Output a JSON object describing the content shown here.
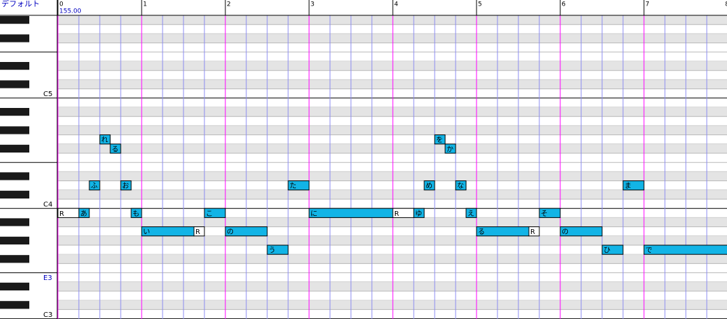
{
  "header": {
    "voice": "デフォルト",
    "tempo": "155.00"
  },
  "measures": [
    0,
    1,
    2,
    3,
    4,
    5,
    6,
    7,
    8
  ],
  "key_labels": [
    {
      "pitch": 72,
      "label": "C5",
      "color": "#000000"
    },
    {
      "pitch": 60,
      "label": "C4",
      "color": "#000000"
    },
    {
      "pitch": 52,
      "label": "E3",
      "color": "#0000c0"
    },
    {
      "pitch": 48,
      "label": "C3",
      "color": "#000000"
    }
  ],
  "notes": [
    {
      "lyric": "R",
      "start": 0,
      "length": 1,
      "pitch": 59,
      "color": "#ffffff"
    },
    {
      "lyric": "あ",
      "start": 1,
      "length": 0.5,
      "pitch": 59,
      "color": "#12b4e6"
    },
    {
      "lyric": "ふ",
      "start": 1.5,
      "length": 0.5,
      "pitch": 62,
      "color": "#12b4e6"
    },
    {
      "lyric": "れ",
      "start": 2,
      "length": 0.5,
      "pitch": 67,
      "color": "#12b4e6"
    },
    {
      "lyric": "る",
      "start": 2.5,
      "length": 0.5,
      "pitch": 66,
      "color": "#12b4e6"
    },
    {
      "lyric": "お",
      "start": 3,
      "length": 0.5,
      "pitch": 62,
      "color": "#12b4e6"
    },
    {
      "lyric": "も",
      "start": 3.5,
      "length": 0.5,
      "pitch": 59,
      "color": "#12b4e6"
    },
    {
      "lyric": "い",
      "start": 4,
      "length": 2.5,
      "pitch": 57,
      "color": "#12b4e6"
    },
    {
      "lyric": "R",
      "start": 6.5,
      "length": 0.5,
      "pitch": 57,
      "color": "#ffffff"
    },
    {
      "lyric": "こ",
      "start": 7,
      "length": 1,
      "pitch": 59,
      "color": "#12b4e6"
    },
    {
      "lyric": "の",
      "start": 8,
      "length": 2,
      "pitch": 57,
      "color": "#12b4e6"
    },
    {
      "lyric": "う",
      "start": 10,
      "length": 1,
      "pitch": 55,
      "color": "#12b4e6"
    },
    {
      "lyric": "た",
      "start": 11,
      "length": 1,
      "pitch": 62,
      "color": "#12b4e6"
    },
    {
      "lyric": "に",
      "start": 12,
      "length": 4,
      "pitch": 59,
      "color": "#12b4e6"
    },
    {
      "lyric": "R",
      "start": 16,
      "length": 1,
      "pitch": 59,
      "color": "#ffffff"
    },
    {
      "lyric": "ゆ",
      "start": 17,
      "length": 0.5,
      "pitch": 59,
      "color": "#12b4e6"
    },
    {
      "lyric": "め",
      "start": 17.5,
      "length": 0.5,
      "pitch": 62,
      "color": "#12b4e6"
    },
    {
      "lyric": "を",
      "start": 18,
      "length": 0.5,
      "pitch": 67,
      "color": "#12b4e6"
    },
    {
      "lyric": "か",
      "start": 18.5,
      "length": 0.5,
      "pitch": 66,
      "color": "#12b4e6"
    },
    {
      "lyric": "な",
      "start": 19,
      "length": 0.5,
      "pitch": 62,
      "color": "#12b4e6"
    },
    {
      "lyric": "え",
      "start": 19.5,
      "length": 0.5,
      "pitch": 59,
      "color": "#12b4e6"
    },
    {
      "lyric": "る",
      "start": 20,
      "length": 2.5,
      "pitch": 57,
      "color": "#12b4e6"
    },
    {
      "lyric": "R",
      "start": 22.5,
      "length": 0.5,
      "pitch": 57,
      "color": "#ffffff"
    },
    {
      "lyric": "そ",
      "start": 23,
      "length": 1,
      "pitch": 59,
      "color": "#12b4e6"
    },
    {
      "lyric": "の",
      "start": 24,
      "length": 2,
      "pitch": 57,
      "color": "#12b4e6"
    },
    {
      "lyric": "ひ",
      "start": 26,
      "length": 1,
      "pitch": 55,
      "color": "#12b4e6"
    },
    {
      "lyric": "ま",
      "start": 27,
      "length": 1,
      "pitch": 62,
      "color": "#12b4e6"
    },
    {
      "lyric": "で",
      "start": 28,
      "length": 4,
      "pitch": 55,
      "color": "#12b4e6"
    }
  ]
}
